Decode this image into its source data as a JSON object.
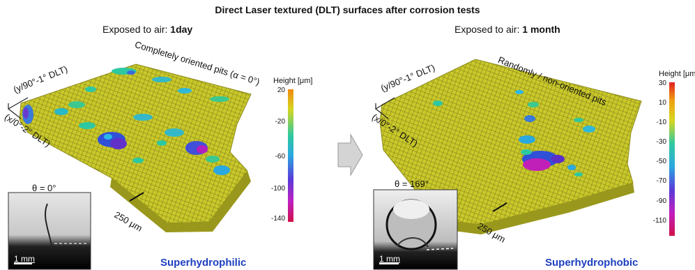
{
  "figure": {
    "title": "Direct Laser textured (DLT) surfaces after corrosion tests"
  },
  "left_panel": {
    "heading_prefix": "Exposed to air: ",
    "heading_bold": "1day",
    "axis_y": "(y/90°-1° DLT)",
    "axis_x": "(x/0°-2° DLT)",
    "annotation": "Completely oriented pits (α = 0°)",
    "scale_label": "250 μm",
    "contact_angle": "θ = 0°",
    "photo_scale": "1 mm",
    "wetting": "Superhydrophilic",
    "colorbar": {
      "title": "Height [μm]",
      "ticks": [
        "20",
        "-20",
        "-60",
        "-100",
        "-140"
      ],
      "range": [
        20,
        -140
      ]
    }
  },
  "right_panel": {
    "heading_prefix": "Exposed to air: ",
    "heading_bold": "1 month",
    "axis_y": "(y/90°-1° DLT)",
    "axis_x": "(x/0°-2° DLT)",
    "annotation": "Randomly / non-oriented pits",
    "scale_label": "250 μm",
    "contact_angle": "θ = 169°",
    "photo_scale": "1 mm",
    "wetting": "Superhydrophobic",
    "colorbar": {
      "title": "Height [μm]",
      "ticks": [
        "30",
        "10",
        "-10",
        "-30",
        "-50",
        "-70",
        "-90",
        "-110"
      ],
      "range": [
        30,
        -110
      ]
    }
  },
  "colors": {
    "surface": "#c8c820",
    "wetting_text": "#1e3fbf",
    "arrow": "#c8c8c8"
  }
}
